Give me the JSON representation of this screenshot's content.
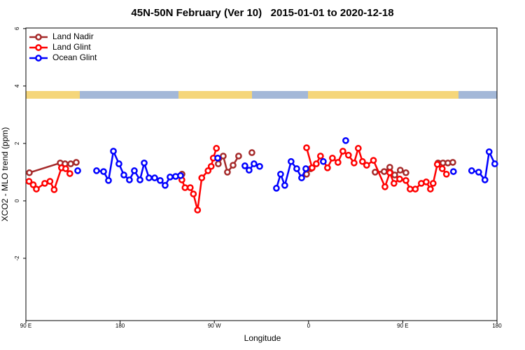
{
  "chart_data": {
    "type": "line",
    "title": "45N-50N February (Ver 10)   2015-01-01 to 2020-12-18",
    "xlabel": "Longitude",
    "ylabel": "XCO2 - MLO trend (ppm)",
    "xlim": [
      90,
      540
    ],
    "xticks": [
      {
        "value": 90,
        "label": "90 E"
      },
      {
        "value": 180,
        "label": "180"
      },
      {
        "value": 270,
        "label": "90 W"
      },
      {
        "value": 360,
        "label": "0"
      },
      {
        "value": 450,
        "label": "90 E"
      },
      {
        "value": 540,
        "label": "180"
      }
    ],
    "ylim": [
      -4.17,
      6.02
    ],
    "yticks": [
      -2,
      0,
      2,
      4,
      6
    ],
    "legend": "top-left",
    "series": [
      {
        "name": "Land Nadir",
        "color": "#a52a2a",
        "x": [
          93.3,
          122.8,
          127.4,
          132.8,
          138.1,
          200,
          239.1,
          250,
          273.8,
          278.5,
          282.5,
          287.9,
          293.2,
          300,
          305.9,
          330,
          358.1,
          362.1,
          400,
          423.6,
          432.2,
          437.6,
          442.3,
          447.6,
          453,
          470,
          483.7,
          488.4,
          493.1,
          497.8
        ],
        "values": [
          0.98,
          1.32,
          1.29,
          1.29,
          1.34,
          null,
          0.93,
          null,
          1.29,
          1.56,
          1.0,
          1.24,
          1.56,
          null,
          1.68,
          null,
          0.93,
          1.12,
          null,
          1.0,
          1.02,
          1.17,
          0.9,
          1.07,
          0.98,
          null,
          1.32,
          1.32,
          1.32,
          1.34
        ]
      },
      {
        "name": "Land Glint",
        "color": "#ff0000",
        "x": [
          93,
          97,
          100,
          108,
          113,
          117,
          124,
          128,
          132,
          200,
          239,
          242,
          247,
          250,
          254,
          258,
          264,
          267,
          269,
          272,
          320,
          358.1,
          363.4,
          367.4,
          371.4,
          378.1,
          382.8,
          388.1,
          392.8,
          398.1,
          403.5,
          407.5,
          411.5,
          415.5,
          422,
          433,
          437.6,
          441.6,
          447,
          453,
          457,
          462,
          467.7,
          472.4,
          476.4,
          479,
          483,
          487.7,
          491.7
        ],
        "values": [
          0.68,
          0.56,
          0.41,
          0.61,
          0.68,
          0.39,
          1.15,
          1.12,
          0.95,
          null,
          0.73,
          0.46,
          0.46,
          0.24,
          -0.32,
          0.8,
          1.05,
          1.2,
          1.49,
          1.83,
          null,
          1.85,
          1.15,
          1.29,
          1.56,
          1.15,
          1.49,
          1.34,
          1.73,
          1.59,
          1.32,
          1.83,
          1.37,
          1.24,
          1.41,
          0.49,
          0.98,
          0.61,
          0.76,
          0.71,
          0.41,
          0.41,
          0.61,
          0.66,
          0.41,
          0.61,
          1.27,
          1.12,
          0.93
        ]
      },
      {
        "name": "Ocean Glint",
        "color": "#0000ff",
        "x": [
          139.5,
          150,
          157.5,
          164.2,
          168.9,
          173.6,
          178.9,
          183.6,
          188.9,
          193.6,
          199,
          203,
          207.6,
          213,
          218.3,
          223,
          227.7,
          233,
          237.7,
          255,
          273.2,
          290,
          299.2,
          303.2,
          307.9,
          313.3,
          320,
          329.3,
          333.3,
          337.3,
          343.3,
          348.7,
          353.4,
          357.4,
          365,
          374.1,
          385,
          395.5,
          450,
          498.4,
          505,
          515.8,
          522.5,
          528.5,
          532.5,
          537.9
        ],
        "values": [
          1.05,
          null,
          1.05,
          1.02,
          0.71,
          1.73,
          1.29,
          0.9,
          0.73,
          1.05,
          0.73,
          1.32,
          0.8,
          0.8,
          0.71,
          0.54,
          0.83,
          0.85,
          0.88,
          null,
          1.49,
          null,
          1.22,
          1.07,
          1.29,
          1.2,
          null,
          0.44,
          0.93,
          0.54,
          1.37,
          1.12,
          0.8,
          1.12,
          null,
          1.37,
          null,
          2.1,
          null,
          1.02,
          null,
          1.05,
          1.0,
          0.73,
          1.71,
          1.29
        ]
      }
    ]
  }
}
